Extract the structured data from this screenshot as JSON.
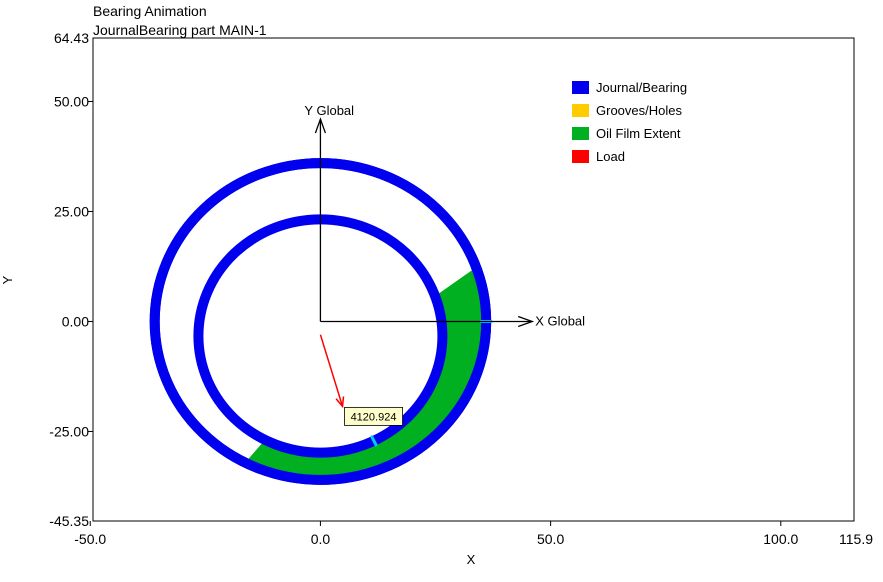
{
  "chart_data": {
    "type": "scatter",
    "title": "Bearing Animation",
    "subtitle": "JournalBearing part MAIN-1",
    "xlabel": "X",
    "ylabel": "Y",
    "xlim": [
      -49.4,
      115.9
    ],
    "ylim": [
      -45.35,
      64.43
    ],
    "x_ticks": [
      "-50.0",
      "0.0",
      "50.0",
      "100.0"
    ],
    "x_tick_values": [
      -50,
      0,
      50,
      100
    ],
    "x_max_label": "115.9",
    "y_ticks": [
      "50.00",
      "25.00",
      "0.00",
      "-25.00"
    ],
    "y_tick_values": [
      50,
      25,
      0,
      -25
    ],
    "y_max_label": "64.43",
    "y_min_label": "-45.35",
    "grid": false,
    "legend_position": "top-right",
    "legend": [
      {
        "label": "Journal/Bearing",
        "color": "#0000ee"
      },
      {
        "label": "Grooves/Holes",
        "color": "#ffcc00"
      },
      {
        "label": "Oil Film Extent",
        "color": "#00b020"
      },
      {
        "label": "Load",
        "color": "#ff0000"
      }
    ],
    "bearing": {
      "center": [
        0,
        0
      ],
      "radius": 36,
      "color": "#0000ee"
    },
    "journal": {
      "center": [
        0,
        -3.3
      ],
      "radius": 26.5,
      "color": "#0000ee"
    },
    "oil_film": {
      "start_angle_deg": 20,
      "end_angle_deg": -117,
      "color": "#00b020"
    },
    "grooves": [
      {
        "angle_deg": 0,
        "color": "#00ccff"
      },
      {
        "angle_deg": -64,
        "color": "#00ccff"
      }
    ],
    "axes_arrows": {
      "origin": [
        0,
        0
      ],
      "x_end": [
        46,
        0
      ],
      "y_end": [
        0,
        46
      ],
      "x_label": "X Global",
      "y_label": "Y Global"
    },
    "load": {
      "start": [
        0,
        -3
      ],
      "end": [
        4.8,
        -19.3
      ],
      "value_label": "4120.924",
      "color": "#ff0000"
    }
  }
}
